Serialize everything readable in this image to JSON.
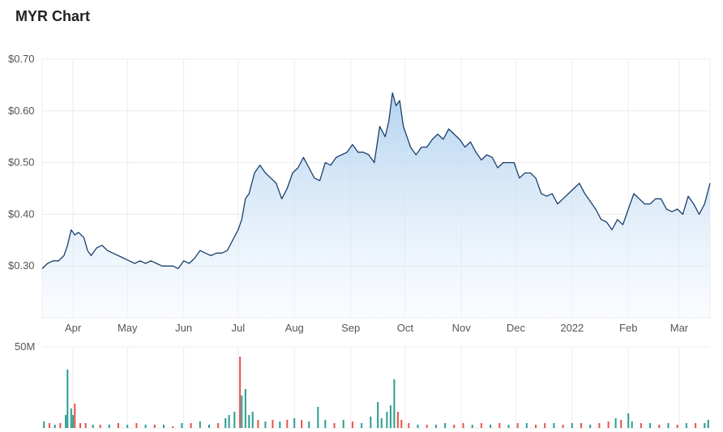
{
  "chart_data": {
    "type": "area",
    "title": "MYR Chart",
    "y_ticks": [
      "$0.30",
      "$0.40",
      "$0.50",
      "$0.60",
      "$0.70"
    ],
    "y_tick_values": [
      0.3,
      0.4,
      0.5,
      0.6,
      0.7
    ],
    "ylim": [
      0.2,
      0.7
    ],
    "x_labels": [
      "Apr",
      "May",
      "Jun",
      "Jul",
      "Aug",
      "Sep",
      "Oct",
      "Nov",
      "Dec",
      "2022",
      "Feb",
      "Mar"
    ],
    "x_label_dates": [
      "2021-04-01",
      "2021-05-01",
      "2021-06-01",
      "2021-07-01",
      "2021-08-01",
      "2021-09-01",
      "2021-10-01",
      "2021-11-01",
      "2021-12-01",
      "2022-01-01",
      "2022-02-01",
      "2022-03-01"
    ],
    "xlim": [
      "2021-03-15",
      "2022-03-18"
    ],
    "grid": true,
    "series": [
      {
        "values": [
          [
            "2021-03-15",
            0.295
          ],
          [
            "2021-03-18",
            0.305
          ],
          [
            "2021-03-21",
            0.31
          ],
          [
            "2021-03-24",
            0.31
          ],
          [
            "2021-03-27",
            0.32
          ],
          [
            "2021-03-29",
            0.34
          ],
          [
            "2021-03-31",
            0.37
          ],
          [
            "2021-04-02",
            0.36
          ],
          [
            "2021-04-04",
            0.365
          ],
          [
            "2021-04-07",
            0.355
          ],
          [
            "2021-04-09",
            0.33
          ],
          [
            "2021-04-11",
            0.32
          ],
          [
            "2021-04-14",
            0.335
          ],
          [
            "2021-04-17",
            0.34
          ],
          [
            "2021-04-20",
            0.33
          ],
          [
            "2021-04-23",
            0.325
          ],
          [
            "2021-04-26",
            0.32
          ],
          [
            "2021-04-29",
            0.315
          ],
          [
            "2021-05-02",
            0.31
          ],
          [
            "2021-05-05",
            0.305
          ],
          [
            "2021-05-08",
            0.31
          ],
          [
            "2021-05-11",
            0.305
          ],
          [
            "2021-05-14",
            0.31
          ],
          [
            "2021-05-17",
            0.305
          ],
          [
            "2021-05-20",
            0.3
          ],
          [
            "2021-05-23",
            0.3
          ],
          [
            "2021-05-26",
            0.3
          ],
          [
            "2021-05-29",
            0.295
          ],
          [
            "2021-06-01",
            0.31
          ],
          [
            "2021-06-04",
            0.305
          ],
          [
            "2021-06-07",
            0.315
          ],
          [
            "2021-06-10",
            0.33
          ],
          [
            "2021-06-13",
            0.325
          ],
          [
            "2021-06-16",
            0.32
          ],
          [
            "2021-06-19",
            0.325
          ],
          [
            "2021-06-22",
            0.325
          ],
          [
            "2021-06-25",
            0.33
          ],
          [
            "2021-06-28",
            0.35
          ],
          [
            "2021-07-01",
            0.37
          ],
          [
            "2021-07-03",
            0.39
          ],
          [
            "2021-07-05",
            0.43
          ],
          [
            "2021-07-07",
            0.44
          ],
          [
            "2021-07-10",
            0.48
          ],
          [
            "2021-07-13",
            0.495
          ],
          [
            "2021-07-16",
            0.48
          ],
          [
            "2021-07-19",
            0.47
          ],
          [
            "2021-07-22",
            0.46
          ],
          [
            "2021-07-25",
            0.43
          ],
          [
            "2021-07-28",
            0.45
          ],
          [
            "2021-07-31",
            0.48
          ],
          [
            "2021-08-03",
            0.49
          ],
          [
            "2021-08-06",
            0.51
          ],
          [
            "2021-08-09",
            0.49
          ],
          [
            "2021-08-12",
            0.47
          ],
          [
            "2021-08-15",
            0.465
          ],
          [
            "2021-08-18",
            0.5
          ],
          [
            "2021-08-21",
            0.495
          ],
          [
            "2021-08-24",
            0.51
          ],
          [
            "2021-08-27",
            0.515
          ],
          [
            "2021-08-30",
            0.52
          ],
          [
            "2021-09-02",
            0.535
          ],
          [
            "2021-09-05",
            0.52
          ],
          [
            "2021-09-08",
            0.52
          ],
          [
            "2021-09-11",
            0.515
          ],
          [
            "2021-09-14",
            0.5
          ],
          [
            "2021-09-17",
            0.57
          ],
          [
            "2021-09-20",
            0.55
          ],
          [
            "2021-09-22",
            0.58
          ],
          [
            "2021-09-24",
            0.635
          ],
          [
            "2021-09-26",
            0.61
          ],
          [
            "2021-09-28",
            0.62
          ],
          [
            "2021-09-30",
            0.57
          ],
          [
            "2021-10-02",
            0.55
          ],
          [
            "2021-10-04",
            0.53
          ],
          [
            "2021-10-07",
            0.515
          ],
          [
            "2021-10-10",
            0.53
          ],
          [
            "2021-10-13",
            0.53
          ],
          [
            "2021-10-16",
            0.545
          ],
          [
            "2021-10-19",
            0.555
          ],
          [
            "2021-10-22",
            0.545
          ],
          [
            "2021-10-25",
            0.565
          ],
          [
            "2021-10-28",
            0.555
          ],
          [
            "2021-10-31",
            0.545
          ],
          [
            "2021-11-03",
            0.53
          ],
          [
            "2021-11-06",
            0.54
          ],
          [
            "2021-11-09",
            0.52
          ],
          [
            "2021-11-12",
            0.505
          ],
          [
            "2021-11-15",
            0.515
          ],
          [
            "2021-11-18",
            0.51
          ],
          [
            "2021-11-21",
            0.49
          ],
          [
            "2021-11-24",
            0.5
          ],
          [
            "2021-11-27",
            0.5
          ],
          [
            "2021-11-30",
            0.5
          ],
          [
            "2021-12-03",
            0.47
          ],
          [
            "2021-12-06",
            0.48
          ],
          [
            "2021-12-09",
            0.48
          ],
          [
            "2021-12-12",
            0.47
          ],
          [
            "2021-12-15",
            0.44
          ],
          [
            "2021-12-18",
            0.435
          ],
          [
            "2021-12-21",
            0.44
          ],
          [
            "2021-12-24",
            0.42
          ],
          [
            "2021-12-27",
            0.43
          ],
          [
            "2021-12-30",
            0.44
          ],
          [
            "2022-01-02",
            0.45
          ],
          [
            "2022-01-05",
            0.46
          ],
          [
            "2022-01-08",
            0.44
          ],
          [
            "2022-01-11",
            0.425
          ],
          [
            "2022-01-14",
            0.41
          ],
          [
            "2022-01-17",
            0.39
          ],
          [
            "2022-01-20",
            0.385
          ],
          [
            "2022-01-23",
            0.37
          ],
          [
            "2022-01-26",
            0.39
          ],
          [
            "2022-01-29",
            0.38
          ],
          [
            "2022-02-01",
            0.41
          ],
          [
            "2022-02-04",
            0.44
          ],
          [
            "2022-02-07",
            0.43
          ],
          [
            "2022-02-10",
            0.42
          ],
          [
            "2022-02-13",
            0.42
          ],
          [
            "2022-02-16",
            0.43
          ],
          [
            "2022-02-19",
            0.43
          ],
          [
            "2022-02-22",
            0.41
          ],
          [
            "2022-02-25",
            0.405
          ],
          [
            "2022-02-28",
            0.41
          ],
          [
            "2022-03-03",
            0.4
          ],
          [
            "2022-03-06",
            0.435
          ],
          [
            "2022-03-09",
            0.42
          ],
          [
            "2022-03-12",
            0.4
          ],
          [
            "2022-03-15",
            0.42
          ],
          [
            "2022-03-18",
            0.46
          ]
        ]
      }
    ],
    "volume": {
      "y_tick": "50M",
      "y_tick_value": 50,
      "ylim": [
        0,
        50
      ],
      "bars": [
        [
          "2021-03-16",
          4,
          "up"
        ],
        [
          "2021-03-19",
          3,
          "down"
        ],
        [
          "2021-03-22",
          2,
          "up"
        ],
        [
          "2021-03-25",
          3,
          "down"
        ],
        [
          "2021-03-28",
          8,
          "up"
        ],
        [
          "2021-03-29",
          36,
          "up"
        ],
        [
          "2021-03-31",
          12,
          "up"
        ],
        [
          "2021-04-01",
          8,
          "up"
        ],
        [
          "2021-04-02",
          15,
          "down"
        ],
        [
          "2021-04-05",
          3,
          "down"
        ],
        [
          "2021-04-08",
          3,
          "down"
        ],
        [
          "2021-04-12",
          2,
          "up"
        ],
        [
          "2021-04-16",
          2,
          "down"
        ],
        [
          "2021-04-21",
          2,
          "up"
        ],
        [
          "2021-04-26",
          3,
          "down"
        ],
        [
          "2021-05-01",
          2,
          "up"
        ],
        [
          "2021-05-06",
          3,
          "down"
        ],
        [
          "2021-05-11",
          2,
          "up"
        ],
        [
          "2021-05-16",
          2,
          "down"
        ],
        [
          "2021-05-21",
          2,
          "up"
        ],
        [
          "2021-05-26",
          1,
          "down"
        ],
        [
          "2021-05-31",
          3,
          "up"
        ],
        [
          "2021-06-05",
          3,
          "down"
        ],
        [
          "2021-06-10",
          4,
          "up"
        ],
        [
          "2021-06-15",
          2,
          "up"
        ],
        [
          "2021-06-20",
          3,
          "down"
        ],
        [
          "2021-06-24",
          6,
          "up"
        ],
        [
          "2021-06-26",
          8,
          "up"
        ],
        [
          "2021-06-29",
          10,
          "up"
        ],
        [
          "2021-07-02",
          44,
          "down"
        ],
        [
          "2021-07-03",
          20,
          "up"
        ],
        [
          "2021-07-05",
          24,
          "up"
        ],
        [
          "2021-07-07",
          8,
          "up"
        ],
        [
          "2021-07-09",
          10,
          "up"
        ],
        [
          "2021-07-12",
          5,
          "down"
        ],
        [
          "2021-07-16",
          4,
          "up"
        ],
        [
          "2021-07-20",
          5,
          "down"
        ],
        [
          "2021-07-24",
          4,
          "up"
        ],
        [
          "2021-07-28",
          5,
          "down"
        ],
        [
          "2021-08-01",
          6,
          "up"
        ],
        [
          "2021-08-05",
          5,
          "down"
        ],
        [
          "2021-08-09",
          4,
          "up"
        ],
        [
          "2021-08-14",
          13,
          "up"
        ],
        [
          "2021-08-18",
          5,
          "up"
        ],
        [
          "2021-08-23",
          3,
          "down"
        ],
        [
          "2021-08-28",
          5,
          "up"
        ],
        [
          "2021-09-02",
          4,
          "down"
        ],
        [
          "2021-09-07",
          3,
          "up"
        ],
        [
          "2021-09-12",
          7,
          "up"
        ],
        [
          "2021-09-16",
          16,
          "up"
        ],
        [
          "2021-09-18",
          6,
          "up"
        ],
        [
          "2021-09-21",
          10,
          "up"
        ],
        [
          "2021-09-23",
          14,
          "up"
        ],
        [
          "2021-09-25",
          30,
          "up"
        ],
        [
          "2021-09-27",
          10,
          "down"
        ],
        [
          "2021-09-29",
          5,
          "down"
        ],
        [
          "2021-10-03",
          3,
          "down"
        ],
        [
          "2021-10-08",
          2,
          "up"
        ],
        [
          "2021-10-13",
          2,
          "down"
        ],
        [
          "2021-10-18",
          2,
          "up"
        ],
        [
          "2021-10-23",
          3,
          "up"
        ],
        [
          "2021-10-28",
          2,
          "down"
        ],
        [
          "2021-11-02",
          3,
          "down"
        ],
        [
          "2021-11-07",
          2,
          "up"
        ],
        [
          "2021-11-12",
          3,
          "down"
        ],
        [
          "2021-11-17",
          2,
          "up"
        ],
        [
          "2021-11-22",
          3,
          "down"
        ],
        [
          "2021-11-27",
          2,
          "up"
        ],
        [
          "2021-12-02",
          3,
          "down"
        ],
        [
          "2021-12-07",
          3,
          "up"
        ],
        [
          "2021-12-12",
          2,
          "down"
        ],
        [
          "2021-12-17",
          3,
          "down"
        ],
        [
          "2021-12-22",
          3,
          "up"
        ],
        [
          "2021-12-27",
          2,
          "down"
        ],
        [
          "2022-01-01",
          3,
          "up"
        ],
        [
          "2022-01-06",
          3,
          "down"
        ],
        [
          "2022-01-11",
          2,
          "up"
        ],
        [
          "2022-01-16",
          3,
          "down"
        ],
        [
          "2022-01-21",
          4,
          "down"
        ],
        [
          "2022-01-25",
          6,
          "up"
        ],
        [
          "2022-01-28",
          5,
          "down"
        ],
        [
          "2022-02-01",
          9,
          "up"
        ],
        [
          "2022-02-03",
          4,
          "up"
        ],
        [
          "2022-02-08",
          3,
          "down"
        ],
        [
          "2022-02-13",
          3,
          "up"
        ],
        [
          "2022-02-18",
          2,
          "down"
        ],
        [
          "2022-02-23",
          3,
          "up"
        ],
        [
          "2022-02-28",
          2,
          "down"
        ],
        [
          "2022-03-05",
          3,
          "up"
        ],
        [
          "2022-03-10",
          3,
          "down"
        ],
        [
          "2022-03-15",
          3,
          "up"
        ],
        [
          "2022-03-17",
          5,
          "up"
        ]
      ]
    },
    "colors": {
      "line": "#1a3f6e",
      "area_top": "#a9cdee",
      "area_bottom": "#f2f7fd",
      "grid": "#ececec",
      "volume_up": "#2a9d8f",
      "volume_down": "#e5534b"
    }
  }
}
